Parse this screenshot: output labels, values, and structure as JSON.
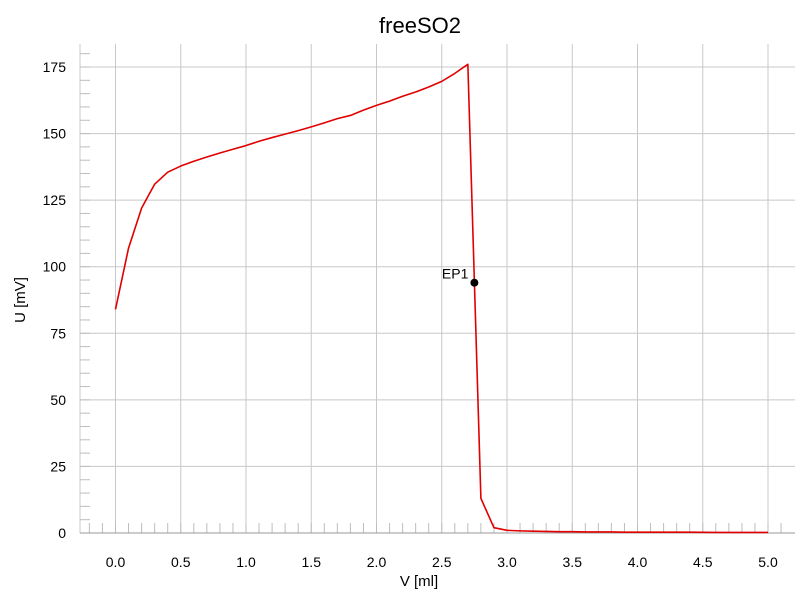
{
  "chart_data": {
    "type": "line",
    "title": "freeSO2",
    "xlabel": "V [ml]",
    "ylabel": "U [mV]",
    "xlim": [
      -0.25,
      5.2
    ],
    "ylim": [
      0,
      180
    ],
    "xticks": [
      "0.0",
      "0.5",
      "1.0",
      "1.5",
      "2.0",
      "2.5",
      "3.0",
      "3.5",
      "4.0",
      "4.5",
      "5.0"
    ],
    "yticks": [
      "0",
      "25",
      "50",
      "75",
      "100",
      "125",
      "150",
      "175"
    ],
    "grid": true,
    "series_color": "#e00000",
    "series": [
      {
        "x": [
          0.0,
          0.1,
          0.2,
          0.3,
          0.4,
          0.5,
          0.6,
          0.7,
          0.8,
          0.9,
          1.0,
          1.1,
          1.2,
          1.3,
          1.4,
          1.5,
          1.6,
          1.7,
          1.8,
          1.9,
          2.0,
          2.1,
          2.2,
          2.3,
          2.4,
          2.5,
          2.6,
          2.7,
          2.8,
          2.9,
          3.0,
          3.1,
          3.2,
          3.3,
          3.4,
          3.5,
          3.6,
          3.7,
          3.8,
          3.9,
          4.0,
          4.2,
          4.4,
          4.6,
          4.8,
          5.0
        ],
        "y": [
          84,
          107,
          122,
          131,
          135.5,
          137.8,
          139.6,
          141.2,
          142.7,
          144.1,
          145.5,
          147.1,
          148.5,
          149.8,
          151.1,
          152.5,
          154.0,
          155.6,
          156.8,
          158.8,
          160.6,
          162.2,
          164.0,
          165.6,
          167.5,
          169.6,
          172.6,
          176.0,
          13,
          2,
          1,
          0.8,
          0.7,
          0.6,
          0.5,
          0.5,
          0.4,
          0.4,
          0.4,
          0.3,
          0.3,
          0.3,
          0.3,
          0.2,
          0.2,
          0.2
        ]
      }
    ],
    "annotations": [
      {
        "label": "EP1",
        "x": 2.75,
        "y": 94
      }
    ]
  }
}
